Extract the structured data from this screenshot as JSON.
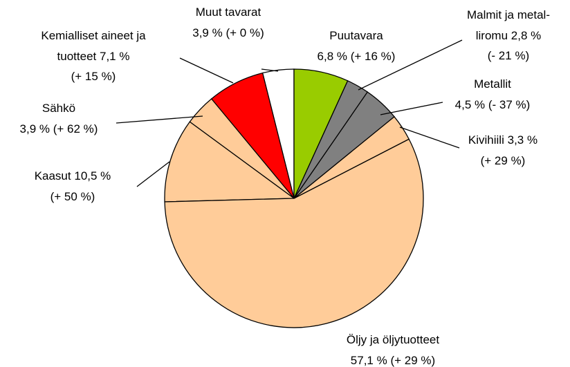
{
  "chart_data": {
    "type": "pie",
    "categories": [
      "Puutavara",
      "Malmit ja metal­liromu",
      "Metallit",
      "Kivihiili",
      "Öljy ja öljytuotteet",
      "Kaasut",
      "Sähkö",
      "Kemialliset aineet ja tuotteet",
      "Muut tavarat"
    ],
    "values": [
      6.8,
      2.8,
      4.5,
      3.3,
      57.1,
      10.5,
      3.9,
      7.1,
      3.9
    ],
    "value_labels": [
      "6,8 %",
      "2,8 %",
      "4,5 %",
      "3,3 %",
      "57,1 %",
      "10,5 %",
      "3,9 %",
      "7,1 %",
      "3,9 %"
    ],
    "changes": [
      "(+ 16 %)",
      "(- 21 %)",
      "(- 37 %)",
      "(+ 29 %)",
      "(+ 29 %)",
      "(+ 50 %)",
      "(+ 62 %)",
      "(+ 15 %)",
      "(+ 0 %)"
    ],
    "colors": [
      "#99cc00",
      "#808080",
      "#808080",
      "#ffcc99",
      "#ffcc99",
      "#ffcc99",
      "#ffcc99",
      "#ff0000",
      "#ffffff"
    ]
  }
}
